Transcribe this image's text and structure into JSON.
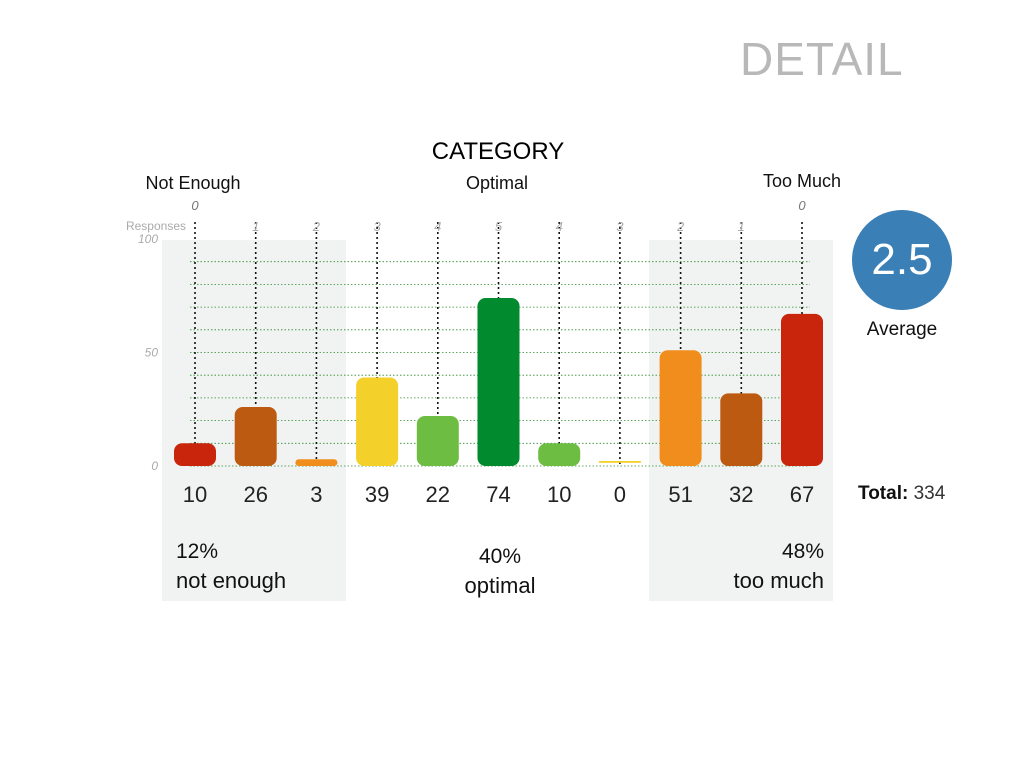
{
  "header": {
    "title": "DETAIL"
  },
  "chart_data": {
    "type": "bar",
    "title": "CATEGORY",
    "group_labels": [
      "Not Enough",
      "Optimal",
      "Too Much"
    ],
    "y_axis_label": "Responses",
    "y_ticks": [
      "0",
      "50",
      "100"
    ],
    "ylim": [
      0,
      100
    ],
    "grid": true,
    "scale_labels": [
      "0",
      "1",
      "2",
      "3",
      "4",
      "5",
      "4",
      "3",
      "2",
      "1",
      "0"
    ],
    "values": [
      10,
      26,
      3,
      39,
      22,
      74,
      10,
      0,
      51,
      32,
      67
    ],
    "value_labels": [
      "10",
      "26",
      "3",
      "39",
      "22",
      "74",
      "10",
      "0",
      "51",
      "32",
      "67"
    ],
    "colors": [
      "#c8250c",
      "#bd5a12",
      "#f08d1d",
      "#f4d02a",
      "#6dbd43",
      "#028a2e",
      "#6dbd43",
      "#f4d02a",
      "#f08d1d",
      "#bd5a12",
      "#c8250c"
    ]
  },
  "summary": {
    "left": {
      "pct": "12%",
      "label": "not enough"
    },
    "middle": {
      "pct": "40%",
      "label": "optimal"
    },
    "right": {
      "pct": "48%",
      "label": "too much"
    }
  },
  "average": {
    "value": "2.5",
    "label": "Average"
  },
  "total": {
    "label": "Total:",
    "value": "334"
  }
}
